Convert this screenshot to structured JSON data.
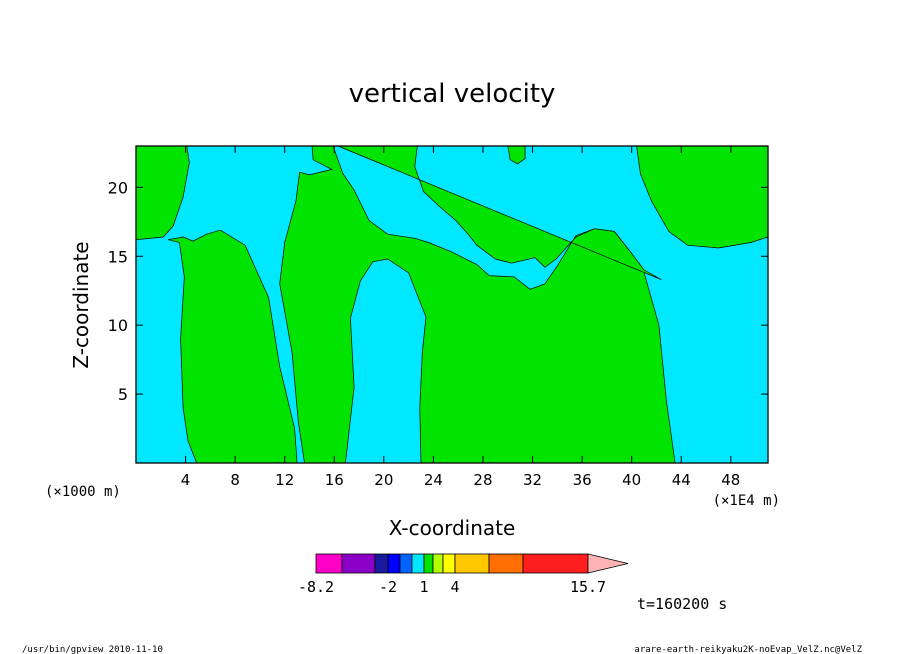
{
  "chart_data": {
    "type": "heatmap",
    "title": "vertical velocity",
    "xlabel": "X-coordinate",
    "ylabel": "Z-coordinate",
    "x_scale_note_left": "(×1000 m)",
    "x_scale_note_right": "(×1E4 m)",
    "xlim": [
      0,
      51
    ],
    "ylim": [
      0,
      23
    ],
    "x_ticks": [
      4,
      8,
      12,
      16,
      20,
      24,
      28,
      32,
      36,
      40,
      44,
      48
    ],
    "y_ticks": [
      5,
      10,
      15,
      20
    ],
    "grid": false,
    "fill_colors": {
      "cyan_level": "#00e8ff",
      "green_level": "#00e400"
    },
    "regions": [
      {
        "name": "green-left",
        "color": "green_level",
        "points": [
          [
            0,
            23
          ],
          [
            4.1,
            23
          ],
          [
            4.3,
            21.8
          ],
          [
            3.8,
            19.3
          ],
          [
            3.0,
            17.2
          ],
          [
            2.2,
            16.4
          ],
          [
            0,
            16.2
          ]
        ]
      },
      {
        "name": "green-lower-left",
        "color": "green_level",
        "points": [
          [
            2.6,
            16.2
          ],
          [
            3.5,
            16.0
          ],
          [
            3.9,
            13.5
          ],
          [
            3.6,
            9.0
          ],
          [
            3.8,
            4.0
          ],
          [
            4.2,
            1.6
          ],
          [
            4.9,
            0
          ],
          [
            13.0,
            0
          ],
          [
            12.8,
            2.5
          ],
          [
            11.6,
            7.0
          ],
          [
            10.7,
            12.0
          ],
          [
            8.8,
            15.8
          ],
          [
            6.8,
            16.9
          ],
          [
            5.7,
            16.6
          ],
          [
            4.6,
            16.1
          ],
          [
            3.8,
            16.4
          ]
        ]
      },
      {
        "name": "green-upper-middle",
        "color": "green_level",
        "points": [
          [
            13.6,
            0
          ],
          [
            16.9,
            0
          ],
          [
            17.6,
            5.5
          ],
          [
            17.3,
            10.5
          ],
          [
            18.1,
            13.2
          ],
          [
            19.1,
            14.6
          ],
          [
            20.3,
            14.8
          ],
          [
            22.0,
            13.8
          ],
          [
            23.0,
            11.5
          ],
          [
            23.4,
            10.6
          ],
          [
            23.1,
            8.0
          ],
          [
            22.9,
            4.0
          ],
          [
            23.0,
            0
          ],
          [
            43.5,
            0
          ],
          [
            42.8,
            4.5
          ],
          [
            42.2,
            10.0
          ],
          [
            41.0,
            13.8
          ],
          [
            40.0,
            15.2
          ],
          [
            38.6,
            16.8
          ],
          [
            37.0,
            17.0
          ],
          [
            35.5,
            16.5
          ],
          [
            34.0,
            14.3
          ],
          [
            33.0,
            13.0
          ],
          [
            31.8,
            12.6
          ],
          [
            30.5,
            13.5
          ],
          [
            28.5,
            13.6
          ],
          [
            27.5,
            14.4
          ],
          [
            25.5,
            15.3
          ],
          [
            23.6,
            16.0
          ],
          [
            22.5,
            16.3
          ],
          [
            20.3,
            16.6
          ],
          [
            18.8,
            17.6
          ],
          [
            17.6,
            19.8
          ],
          [
            16.7,
            21.0
          ],
          [
            15.9,
            23
          ],
          [
            14.2,
            23
          ],
          [
            14.3,
            22.0
          ],
          [
            15.8,
            21.3
          ],
          [
            14.0,
            20.9
          ],
          [
            13.2,
            21.1
          ],
          [
            12.9,
            19.0
          ],
          [
            12.0,
            16.0
          ],
          [
            11.6,
            13.0
          ],
          [
            12.6,
            8.0
          ],
          [
            13.1,
            3.0
          ]
        ]
      },
      {
        "name": "green-top-strip",
        "color": "green_level",
        "points": [
          [
            16.3,
            23
          ],
          [
            22.7,
            23
          ],
          [
            22.5,
            21.5
          ],
          [
            23.2,
            19.7
          ],
          [
            24.5,
            18.6
          ],
          [
            25.8,
            17.6
          ],
          [
            26.8,
            16.6
          ],
          [
            27.5,
            15.8
          ],
          [
            29.0,
            14.8
          ],
          [
            30.3,
            14.5
          ],
          [
            32.2,
            14.9
          ],
          [
            33.0,
            14.2
          ],
          [
            33.9,
            14.8
          ],
          [
            35.5,
            16.4
          ],
          [
            37.0,
            17.0
          ],
          [
            38.6,
            16.8
          ],
          [
            40.0,
            15.2
          ],
          [
            41.0,
            14.0
          ],
          [
            42.4,
            13.3
          ]
        ]
      },
      {
        "name": "green-top-right",
        "color": "green_level",
        "points": [
          [
            40.4,
            23
          ],
          [
            51,
            23
          ],
          [
            51,
            16.4
          ],
          [
            49.6,
            16.0
          ],
          [
            47.0,
            15.6
          ],
          [
            44.5,
            15.8
          ],
          [
            43.0,
            16.8
          ],
          [
            41.6,
            19.0
          ],
          [
            40.7,
            21.0
          ]
        ]
      },
      {
        "name": "green-small-top",
        "color": "green_level",
        "points": [
          [
            30.0,
            23
          ],
          [
            30.2,
            22.0
          ],
          [
            30.8,
            21.7
          ],
          [
            31.4,
            22.1
          ],
          [
            31.4,
            23
          ]
        ]
      }
    ],
    "colorbar": {
      "labels": [
        "-8.2",
        "-2",
        "1",
        "4",
        "15.7"
      ],
      "colors": [
        "#ff00c8",
        "#8a00c8",
        "#1a1aa0",
        "#0000ff",
        "#0064ff",
        "#00e8ff",
        "#00e400",
        "#b4ff00",
        "#ffff00",
        "#ffc800",
        "#ff6e00",
        "#ff1e1e",
        "#ff7d7d",
        "#ffb4b4"
      ]
    },
    "time_label": "t=160200 s"
  },
  "footer": {
    "left": "/usr/bin/gpview  2010-11-10",
    "right": "arare-earth-reikyaku2K-noEvap_VelZ.nc@VelZ"
  }
}
